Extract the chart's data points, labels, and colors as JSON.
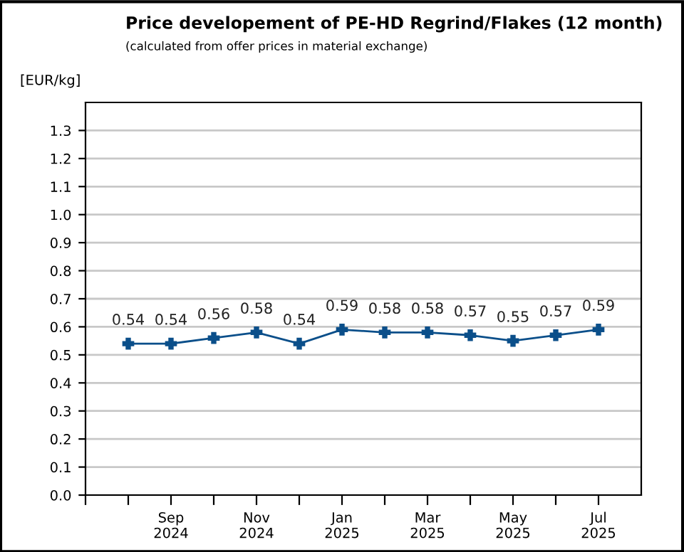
{
  "chart_data": {
    "type": "line",
    "title": "Price developement of PE-HD Regrind/Flakes (12 month)",
    "subtitle": "(calculated from offer prices in material exchange)",
    "ylabel": "[EUR/kg]",
    "categories": [
      null,
      "Sep\n2024",
      null,
      "Nov\n2024",
      null,
      "Jan\n2025",
      null,
      "Mar\n2025",
      null,
      "May\n2025",
      null,
      "Jul\n2025"
    ],
    "series": [
      {
        "color": "#0b4f8a",
        "values": [
          0.54,
          0.54,
          0.56,
          0.58,
          0.54,
          0.59,
          0.58,
          0.58,
          0.57,
          0.55,
          0.57,
          0.59
        ]
      }
    ],
    "ylim": [
      0,
      1.4
    ],
    "yticks": [
      {
        "value": 0,
        "label": "0.0"
      },
      0.1,
      0.2,
      0.3,
      0.4,
      0.5,
      0.6,
      0.7,
      0.8,
      0.9,
      {
        "value": 1,
        "label": "1.0"
      },
      1.1,
      1.2,
      1.3
    ],
    "grid": "y",
    "marker": "cross",
    "line_style": "solid",
    "data_labels": true,
    "legend": false
  }
}
